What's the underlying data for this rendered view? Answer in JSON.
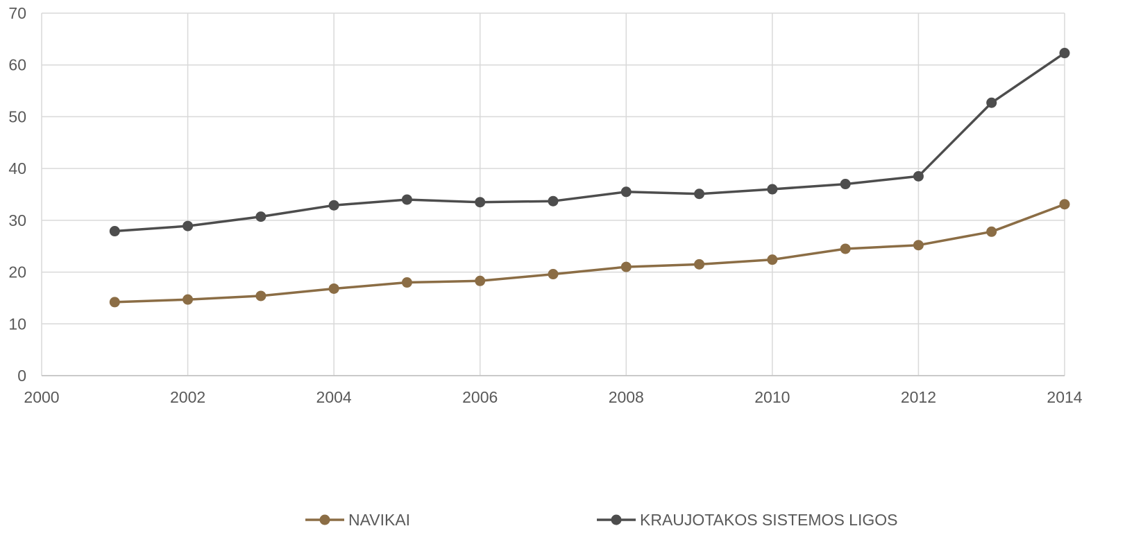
{
  "chart_data": {
    "type": "line",
    "title": "",
    "xlabel": "",
    "ylabel": "",
    "xlim": [
      2000,
      2014
    ],
    "ylim": [
      0,
      70
    ],
    "x_ticks": [
      2000,
      2002,
      2004,
      2006,
      2008,
      2010,
      2012,
      2014
    ],
    "y_ticks": [
      0,
      10,
      20,
      30,
      40,
      50,
      60,
      70
    ],
    "grid": true,
    "legend_position": "bottom",
    "x": [
      2001,
      2002,
      2003,
      2004,
      2005,
      2006,
      2007,
      2008,
      2009,
      2010,
      2011,
      2012,
      2013,
      2014
    ],
    "series": [
      {
        "name": "NAVIKAI",
        "color": "#8B6D45",
        "values": [
          14.2,
          14.7,
          15.4,
          16.8,
          18.0,
          18.3,
          19.6,
          21.0,
          21.5,
          22.4,
          24.5,
          25.2,
          27.8,
          33.1
        ]
      },
      {
        "name": "KRAUJOTAKOS SISTEMOS LIGOS",
        "color": "#4D4D4D",
        "values": [
          27.9,
          28.9,
          30.7,
          32.9,
          34.0,
          33.5,
          33.7,
          35.5,
          35.1,
          36.0,
          37.0,
          38.5,
          52.7,
          62.3
        ]
      }
    ]
  }
}
